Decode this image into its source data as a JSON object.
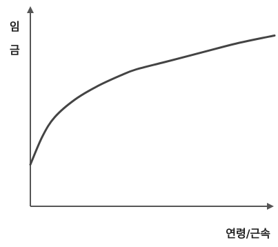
{
  "chart_data": {
    "type": "line",
    "title": "",
    "ylabel_lines": [
      "임",
      "금"
    ],
    "xlabel": "연령/근속",
    "ticks": "none",
    "grid": false,
    "legend": "none",
    "xlim": [
      0,
      100
    ],
    "ylim": [
      0,
      100
    ],
    "series": [
      {
        "points": [
          [
            0,
            22
          ],
          [
            5,
            37
          ],
          [
            10,
            47
          ],
          [
            18,
            56
          ],
          [
            27,
            63
          ],
          [
            37,
            69
          ],
          [
            43,
            72
          ],
          [
            55,
            76
          ],
          [
            70,
            81
          ],
          [
            85,
            86
          ],
          [
            100,
            90
          ]
        ]
      }
    ],
    "colors": {
      "line": "#444444",
      "axis": "#555555",
      "text": "#222222"
    }
  }
}
